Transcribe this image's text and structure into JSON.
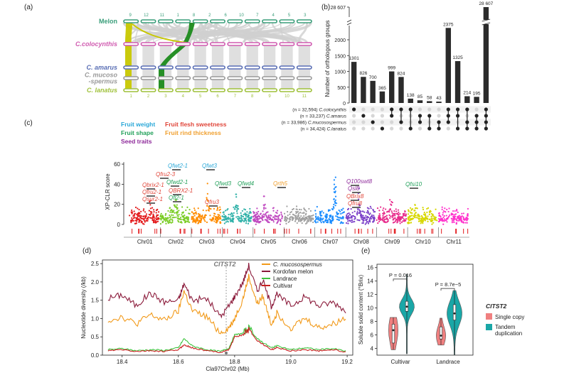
{
  "panel_labels": {
    "a": "(a)",
    "b": "(b)",
    "c": "(c)",
    "d": "(d)",
    "e": "(e)"
  },
  "colors": {
    "melon": "#3a9e7a",
    "colocynthis": "#d05bb0",
    "amarus": "#5a6fb5",
    "mucosospermus": "#9a9a9a",
    "lanatus": "#9fc13a",
    "yellow_band": "#c8c800",
    "green_band": "#1b8a1b",
    "grey_link": "#cfcfcf",
    "bar": "#2b2b2b",
    "trait_weight": "#2aa8d8",
    "trait_sweetness": "#e0463a",
    "trait_shape": "#22a05a",
    "trait_rind": "#f0a030",
    "trait_seed": "#8e2a9a",
    "chr_colors": [
      "#e31a1c",
      "#7ccd28",
      "#ff8c00",
      "#2fb1a8",
      "#c04ac0",
      "#a0a0a0",
      "#1a8cff",
      "#7b3fc8",
      "#e7298a",
      "#d7d700",
      "#ff33cc"
    ],
    "mucosospermus_line": "#f29a1a",
    "kordofan_line": "#8b1a3a",
    "landrace_line": "#3ec43e",
    "cultivar_line": "#c82020",
    "single_copy": "#f08080",
    "tandem": "#1aa7a7"
  },
  "panel_a": {
    "genomes": [
      {
        "name": "Melon",
        "key": "melon"
      },
      {
        "name": "C.colocynthis",
        "key": "colocynthis"
      },
      {
        "name": "C. amarus",
        "key": "amarus"
      },
      {
        "name": "C. mucoso\n-spermus",
        "key": "mucosospermus"
      },
      {
        "name": "C. lanatus",
        "key": "lanatus"
      }
    ],
    "melon_chr_labels": [
      "9",
      "12",
      "11",
      "1",
      "8",
      "2",
      "6",
      "10",
      "7",
      "4",
      "5",
      "3"
    ],
    "chr_numbers": [
      "1",
      "2",
      "3",
      "4",
      "5",
      "6",
      "7",
      "8",
      "9",
      "10",
      "11"
    ],
    "lanatus_chr_labels": [
      "1",
      "2",
      "3",
      "4",
      "5",
      "6",
      "7",
      "8",
      "9",
      "10",
      "11"
    ]
  },
  "chart_data": [
    {
      "type": "bar",
      "panel": "b",
      "ylabel": "Number of orthologous groups",
      "yticks": [
        0,
        500,
        1000,
        1500,
        2000
      ],
      "ybreak_top_label": "28 607",
      "values": [
        1301,
        826,
        700,
        365,
        999,
        824,
        138,
        85,
        58,
        43,
        2375,
        1325,
        214,
        195,
        28607
      ],
      "value_labels": [
        "1301",
        "826",
        "700",
        "365",
        "999",
        "824",
        "138",
        "85",
        "58",
        "43",
        "2375",
        "1325",
        "214",
        "195",
        "28 607"
      ],
      "sets": [
        {
          "n": 32594,
          "label": "(n = 32,594) C.colocynthis"
        },
        {
          "n": 33237,
          "label": "(n = 33,237) C.amarus"
        },
        {
          "n": 33986,
          "label": "(n = 33,986) C.mucosospermus"
        },
        {
          "n": 34424,
          "label": "(n = 34,424) C.lanatus"
        }
      ],
      "membership": [
        [
          1,
          0,
          0,
          0
        ],
        [
          0,
          1,
          0,
          0
        ],
        [
          0,
          0,
          1,
          0
        ],
        [
          0,
          0,
          0,
          1
        ],
        [
          1,
          1,
          0,
          0
        ],
        [
          1,
          0,
          1,
          0
        ],
        [
          1,
          0,
          0,
          1
        ],
        [
          0,
          1,
          1,
          0
        ],
        [
          0,
          1,
          0,
          1
        ],
        [
          0,
          0,
          1,
          1
        ],
        [
          1,
          1,
          1,
          0
        ],
        [
          1,
          1,
          0,
          1
        ],
        [
          1,
          0,
          1,
          1
        ],
        [
          0,
          1,
          1,
          1
        ],
        [
          1,
          1,
          1,
          1
        ]
      ]
    },
    {
      "type": "scatter",
      "panel": "c",
      "ylabel": "XP-CLR score",
      "yticks": [
        0,
        20,
        40,
        60
      ],
      "ylim": [
        0,
        65
      ],
      "chromosomes": [
        "Chr01",
        "Chr02",
        "Chr03",
        "Chr04",
        "Chr05",
        "Chr06",
        "Chr07",
        "Chr08",
        "Chr09",
        "Chr10",
        "Chr11"
      ],
      "chromosome_peak_scores": [
        32,
        34,
        50,
        30,
        28,
        18,
        62,
        38,
        40,
        20,
        33
      ],
      "legend": [
        {
          "label": "Fruit weight",
          "color_key": "trait_weight"
        },
        {
          "label": "Fruit flesh sweetness",
          "color_key": "trait_sweetness"
        },
        {
          "label": "Fruit shape",
          "color_key": "trait_shape"
        },
        {
          "label": "Fruit rind thickness",
          "color_key": "trait_rind"
        },
        {
          "label": "Seed traits",
          "color_key": "trait_seed"
        }
      ],
      "qtl_labels": [
        {
          "text": "Qfwt2-1",
          "trait": "trait_weight",
          "chr": 2,
          "score": 58
        },
        {
          "text": "Qfwt3",
          "trait": "trait_weight",
          "chr": 3,
          "score": 58
        },
        {
          "text": "Qfru2-3",
          "trait": "trait_sweetness",
          "chr": 2,
          "score": 53
        },
        {
          "text": "Qfwd2-1",
          "trait": "trait_shape",
          "chr": 2,
          "score": 50
        },
        {
          "text": "Qbrix2-1",
          "trait": "trait_sweetness",
          "chr": 1,
          "score": 46
        },
        {
          "text": "Qfru2-1",
          "trait": "trait_sweetness",
          "chr": 1,
          "score": 42
        },
        {
          "text": "Qsur2-1",
          "trait": "trait_sweetness",
          "chr": 1,
          "score": 38
        },
        {
          "text": "QBRX2-1",
          "trait": "trait_sweetness",
          "chr": 2,
          "score": 44
        },
        {
          "text": "Qfl2-1",
          "trait": "trait_shape",
          "chr": 2,
          "score": 40
        },
        {
          "text": "Qfwd3",
          "trait": "trait_shape",
          "chr": 3,
          "score": 50
        },
        {
          "text": "Qfwd4",
          "trait": "trait_shape",
          "chr": 4,
          "score": 50
        },
        {
          "text": "Qfru3",
          "trait": "trait_sweetness",
          "chr": 3,
          "score": 38
        },
        {
          "text": "Qrth5",
          "trait": "trait_rind",
          "chr": 5,
          "score": 50
        },
        {
          "text": "Q100swt8",
          "trait": "trait_seed",
          "chr": 8,
          "score": 54
        },
        {
          "text": "Qsl8",
          "trait": "trait_seed",
          "chr": 8,
          "score": 50
        },
        {
          "text": "QBrix8",
          "trait": "trait_sweetness",
          "chr": 8,
          "score": 42
        },
        {
          "text": "Qfru8",
          "trait": "trait_sweetness",
          "chr": 8,
          "score": 38
        },
        {
          "text": "Qfsi10",
          "trait": "trait_shape",
          "chr": 10,
          "score": 50
        }
      ]
    },
    {
      "type": "line",
      "panel": "d",
      "xlabel": "Cla97Chr02 (Mb)",
      "ylabel": "Nucleotide diversity (/kb)",
      "xticks": [
        18.4,
        18.6,
        18.8,
        19.0,
        19.2
      ],
      "yticks": [
        0.0,
        0.5,
        1.0,
        1.5,
        2.0,
        2.5
      ],
      "xlim": [
        18.33,
        19.22
      ],
      "ylim": [
        0,
        2.6
      ],
      "annotation": "ClTST2",
      "annotation_x": 18.77,
      "x": [
        18.35,
        18.4,
        18.45,
        18.5,
        18.55,
        18.6,
        18.62,
        18.65,
        18.7,
        18.75,
        18.78,
        18.8,
        18.83,
        18.85,
        18.88,
        18.9,
        18.93,
        18.95,
        19.0,
        19.05,
        19.1,
        19.15,
        19.2
      ],
      "series": [
        {
          "name": "C. mucosospermus",
          "color_key": "mucosospermus_line",
          "values": [
            0.95,
            1.05,
            0.85,
            1.1,
            0.95,
            1.2,
            1.75,
            1.2,
            1.05,
            0.6,
            0.75,
            1.0,
            1.55,
            2.15,
            1.4,
            1.6,
            0.85,
            1.15,
            0.75,
            1.0,
            0.75,
            0.85,
            1.05
          ]
        },
        {
          "name": "Kordofan melon",
          "color_key": "kordofan_line",
          "values": [
            1.55,
            1.65,
            1.35,
            1.7,
            1.45,
            1.5,
            1.95,
            1.5,
            1.55,
            1.05,
            1.35,
            1.6,
            2.0,
            2.45,
            1.75,
            2.05,
            1.35,
            1.65,
            1.35,
            1.6,
            1.35,
            1.45,
            1.2
          ]
        },
        {
          "name": "Landrace",
          "color_key": "landrace_line",
          "values": [
            0.15,
            0.18,
            0.12,
            0.15,
            0.13,
            0.2,
            0.45,
            0.25,
            0.15,
            0.1,
            0.2,
            0.55,
            0.6,
            0.75,
            0.45,
            0.35,
            0.2,
            0.25,
            0.15,
            0.2,
            0.15,
            0.18,
            0.1
          ]
        },
        {
          "name": "Cultivar",
          "color_key": "cultivar_line",
          "values": [
            0.12,
            0.15,
            0.1,
            0.12,
            0.1,
            0.15,
            0.28,
            0.2,
            0.12,
            0.08,
            0.15,
            0.5,
            0.55,
            0.7,
            0.4,
            0.3,
            0.15,
            0.2,
            0.12,
            0.15,
            0.12,
            0.15,
            0.08
          ]
        }
      ]
    },
    {
      "type": "violin",
      "panel": "e",
      "ylabel": "Soluble solid content (°Brix)",
      "yticks": [
        4,
        6,
        8,
        10,
        12,
        14,
        16
      ],
      "ylim": [
        3,
        16.5
      ],
      "categories": [
        "Cultivar",
        "Landrace"
      ],
      "pvalues": [
        "P = 0.016",
        "P = 8.7e−5"
      ],
      "legend_title": "ClTST2",
      "groups": [
        {
          "name": "Single copy",
          "color_key": "single_copy",
          "stats": [
            {
              "min": 3.8,
              "q1": 4.8,
              "median": 6.7,
              "q3": 7.6,
              "max": 8.6
            },
            {
              "min": 4.5,
              "q1": 5.4,
              "median": 5.9,
              "q3": 7.2,
              "max": 8.5
            }
          ]
        },
        {
          "name": "Tandem duplication",
          "color_key": "tandem",
          "stats": [
            {
              "min": 3.2,
              "q1": 9.5,
              "median": 10.2,
              "q3": 11.0,
              "max": 15.0
            },
            {
              "min": 3.0,
              "q1": 8.2,
              "median": 9.2,
              "q3": 10.5,
              "max": 12.6
            }
          ]
        }
      ]
    }
  ]
}
